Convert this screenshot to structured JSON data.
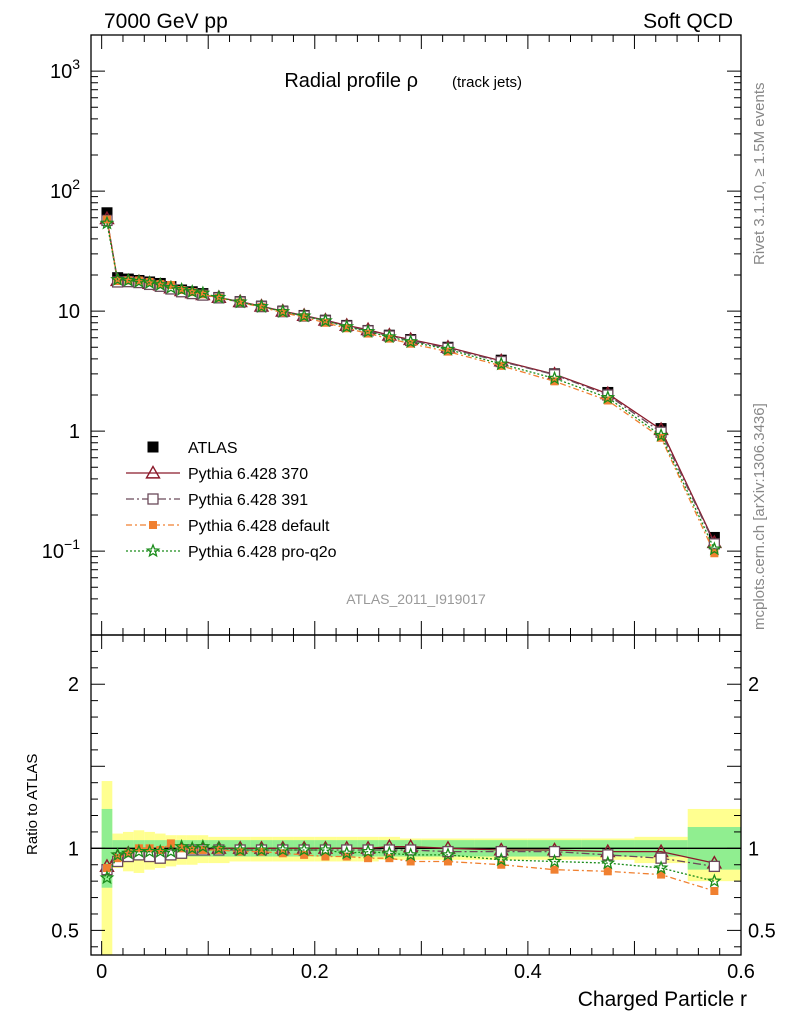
{
  "header": {
    "left": "7000 GeV pp",
    "right": "Soft QCD"
  },
  "side_text": {
    "top": "Rivet 3.1.10, ≥ 1.5M events",
    "bottom": "mcplots.cern.ch [arXiv:1306.3436]"
  },
  "watermark": "ATLAS_2011_I919017",
  "colors": {
    "atlas": "#000000",
    "p370": "#8b1a2b",
    "p391": "#6b4a5a",
    "pdefault": "#f08030",
    "pq2o": "#1a8c1a",
    "band_inner": "#90ee90",
    "band_outer": "#ffff90"
  },
  "chart_data": [
    {
      "type": "scatter",
      "title": "Radial profile ρ",
      "title_suffix": "(track jets)",
      "xlabel": "Charged Particle r",
      "ylabel": "",
      "yscale": "log",
      "ylim": [
        0.02,
        2000
      ],
      "xlim": [
        -0.01,
        0.6
      ],
      "yticks": [
        "10^{-1}",
        "1",
        "10",
        "10^{2}",
        "10^{3}"
      ],
      "legend_position": "left",
      "x": [
        0.005,
        0.015,
        0.025,
        0.035,
        0.045,
        0.055,
        0.065,
        0.075,
        0.085,
        0.095,
        0.11,
        0.13,
        0.15,
        0.17,
        0.19,
        0.21,
        0.23,
        0.25,
        0.27,
        0.29,
        0.325,
        0.375,
        0.425,
        0.475,
        0.525,
        0.575
      ],
      "series": [
        {
          "name": "ATLAS",
          "marker": "square",
          "values": [
            66,
            19,
            18.5,
            18,
            17.5,
            17,
            16,
            15,
            14.5,
            14,
            13,
            12,
            11,
            10,
            9.2,
            8.4,
            7.6,
            6.9,
            6.3,
            5.8,
            5.0,
            3.9,
            3.0,
            2.1,
            1.05,
            0.13
          ]
        },
        {
          "name": "Pythia 6.428 370",
          "marker": "triangle",
          "values": [
            59,
            18,
            17.8,
            17.6,
            17.0,
            16.5,
            15.6,
            14.8,
            14.2,
            13.7,
            13.0,
            12.0,
            11.0,
            10.0,
            9.2,
            8.4,
            7.6,
            7.0,
            6.3,
            5.8,
            5.0,
            3.85,
            2.98,
            2.05,
            1.03,
            0.118
          ]
        },
        {
          "name": "Pythia 6.428 391",
          "marker": "open-square",
          "values": [
            57,
            17.5,
            17.6,
            17.3,
            16.7,
            16.1,
            15.3,
            14.5,
            14.0,
            13.6,
            12.9,
            11.9,
            10.9,
            9.9,
            9.1,
            8.3,
            7.5,
            6.85,
            6.2,
            5.7,
            4.9,
            3.8,
            2.95,
            2.0,
            0.98,
            0.115
          ]
        },
        {
          "name": "Pythia 6.428 default",
          "marker": "filled-square",
          "values": [
            58,
            17.8,
            18.0,
            18.0,
            17.5,
            16.8,
            16.5,
            15.0,
            14.4,
            13.8,
            12.9,
            11.8,
            10.8,
            9.7,
            8.9,
            8.0,
            7.2,
            6.5,
            5.9,
            5.35,
            4.6,
            3.5,
            2.6,
            1.8,
            0.88,
            0.096
          ]
        },
        {
          "name": "Pythia 6.428 pro-q2o",
          "marker": "star",
          "values": [
            54,
            18.3,
            18.0,
            17.6,
            17.2,
            16.6,
            15.7,
            15.1,
            14.5,
            14.1,
            13.0,
            11.9,
            10.9,
            9.9,
            9.1,
            8.3,
            7.4,
            6.75,
            6.1,
            5.55,
            4.8,
            3.62,
            2.75,
            1.9,
            0.92,
            0.104
          ]
        }
      ]
    },
    {
      "type": "scatter",
      "title": "",
      "xlabel": "Charged Particle r",
      "ylabel": "Ratio to ATLAS",
      "ylim": [
        0.35,
        2.3
      ],
      "xlim": [
        -0.01,
        0.6
      ],
      "xticks": [
        0,
        0.2,
        0.4,
        0.6
      ],
      "yticks": [
        0.5,
        1,
        2
      ],
      "reference_line": 1,
      "bands": {
        "x_edges": [
          0.0,
          0.01,
          0.02,
          0.03,
          0.04,
          0.05,
          0.06,
          0.07,
          0.08,
          0.09,
          0.1,
          0.12,
          0.14,
          0.16,
          0.18,
          0.2,
          0.22,
          0.24,
          0.26,
          0.28,
          0.3,
          0.35,
          0.4,
          0.45,
          0.5,
          0.55,
          0.6
        ],
        "inner_up": [
          1.24,
          1.05,
          1.05,
          1.05,
          1.05,
          1.05,
          1.05,
          1.05,
          1.05,
          1.05,
          1.05,
          1.05,
          1.05,
          1.05,
          1.05,
          1.05,
          1.05,
          1.05,
          1.05,
          1.05,
          1.05,
          1.05,
          1.05,
          1.05,
          1.05,
          1.13
        ],
        "inner_down": [
          0.76,
          0.95,
          0.95,
          0.95,
          0.95,
          0.95,
          0.95,
          0.95,
          0.95,
          0.95,
          0.95,
          0.95,
          0.95,
          0.95,
          0.95,
          0.95,
          0.95,
          0.95,
          0.95,
          0.95,
          0.95,
          0.95,
          0.95,
          0.95,
          0.95,
          0.87
        ],
        "outer_up": [
          1.41,
          1.09,
          1.1,
          1.11,
          1.1,
          1.09,
          1.08,
          1.08,
          1.08,
          1.08,
          1.07,
          1.07,
          1.07,
          1.07,
          1.07,
          1.07,
          1.07,
          1.07,
          1.07,
          1.06,
          1.06,
          1.06,
          1.06,
          1.06,
          1.07,
          1.24
        ],
        "outer_down": [
          0.35,
          0.88,
          0.86,
          0.85,
          0.87,
          0.88,
          0.89,
          0.9,
          0.9,
          0.91,
          0.91,
          0.92,
          0.92,
          0.92,
          0.92,
          0.92,
          0.92,
          0.92,
          0.93,
          0.93,
          0.93,
          0.93,
          0.93,
          0.93,
          0.91,
          0.8
        ]
      },
      "x": [
        0.005,
        0.015,
        0.025,
        0.035,
        0.045,
        0.055,
        0.065,
        0.075,
        0.085,
        0.095,
        0.11,
        0.13,
        0.15,
        0.17,
        0.19,
        0.21,
        0.23,
        0.25,
        0.27,
        0.29,
        0.325,
        0.375,
        0.425,
        0.475,
        0.525,
        0.575
      ],
      "series": [
        {
          "name": "Pythia 6.428 370",
          "values": [
            0.89,
            0.95,
            0.97,
            0.98,
            0.97,
            0.97,
            0.98,
            0.99,
            0.99,
            0.99,
            1.0,
            1.0,
            1.0,
            1.0,
            1.0,
            1.0,
            1.0,
            1.0,
            1.01,
            1.01,
            1.0,
            0.99,
            0.99,
            0.98,
            0.98,
            0.91
          ]
        },
        {
          "name": "Pythia 6.428 391",
          "values": [
            0.87,
            0.92,
            0.95,
            0.96,
            0.95,
            0.94,
            0.96,
            0.97,
            0.99,
            0.99,
            0.99,
            0.99,
            0.99,
            0.99,
            0.99,
            0.99,
            0.99,
            0.99,
            0.99,
            0.99,
            0.98,
            0.98,
            0.98,
            0.96,
            0.94,
            0.89
          ]
        },
        {
          "name": "Pythia 6.428 default",
          "values": [
            0.88,
            0.94,
            0.97,
            1.0,
            1.0,
            0.99,
            1.03,
            1.0,
            0.99,
            0.99,
            0.99,
            0.98,
            0.98,
            0.97,
            0.96,
            0.95,
            0.95,
            0.94,
            0.94,
            0.92,
            0.92,
            0.9,
            0.87,
            0.86,
            0.84,
            0.74
          ]
        },
        {
          "name": "Pythia 6.428 pro-q2o",
          "values": [
            0.82,
            0.96,
            0.97,
            0.98,
            0.98,
            0.98,
            0.98,
            1.01,
            1.0,
            1.01,
            1.0,
            0.99,
            0.99,
            0.99,
            0.99,
            0.99,
            0.97,
            0.98,
            0.97,
            0.96,
            0.96,
            0.93,
            0.92,
            0.91,
            0.88,
            0.8
          ]
        }
      ]
    }
  ]
}
